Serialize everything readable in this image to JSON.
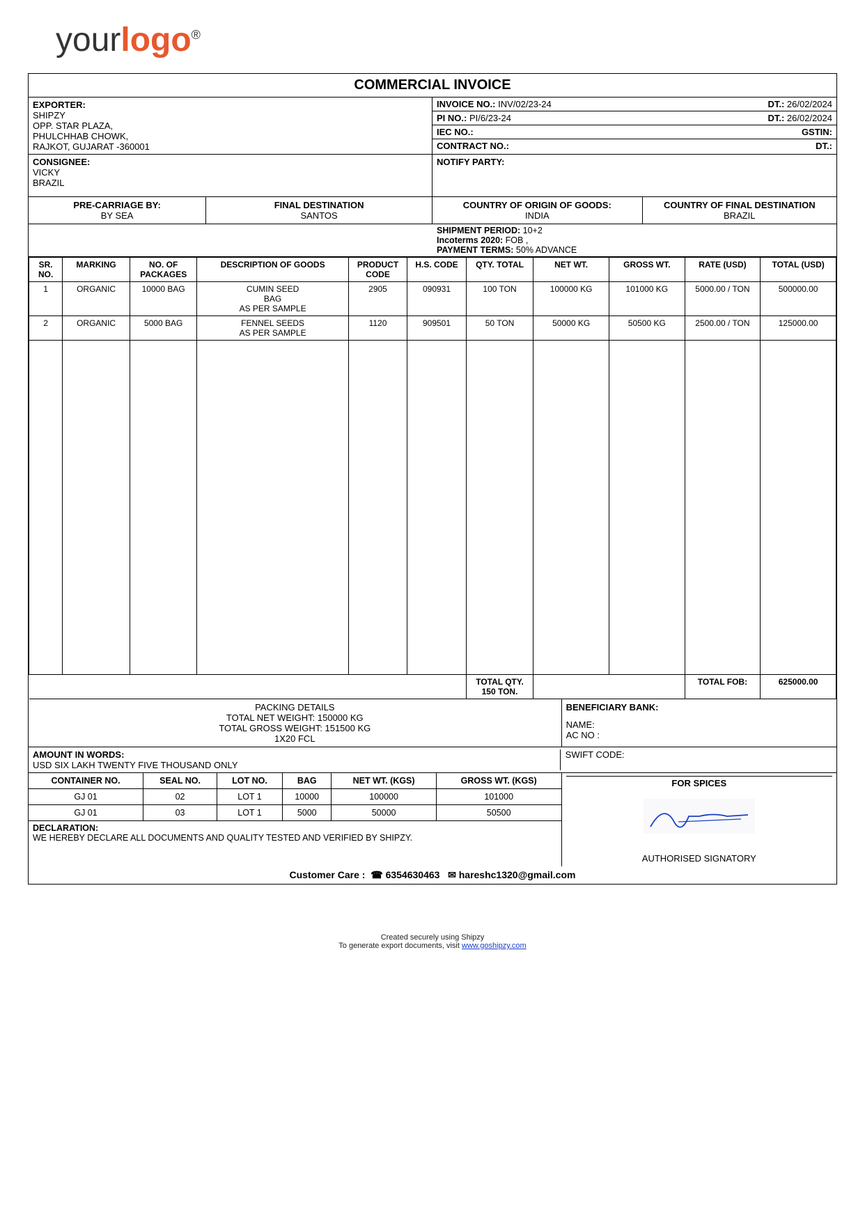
{
  "logo": {
    "part1": "your",
    "part2": "logo",
    "reg": "®"
  },
  "title": "COMMERCIAL INVOICE",
  "exporter": {
    "label": "EXPORTER:",
    "name": "SHIPZY",
    "addr1": "OPP. STAR PLAZA,",
    "addr2": "PHULCHHAB CHOWK,",
    "addr3": "RAJKOT, GUJARAT -360001"
  },
  "invoice": {
    "no_label": "INVOICE NO.:",
    "no": "INV/02/23-24",
    "dt_label": "DT.:",
    "dt": "26/02/2024",
    "pi_label": "PI NO.:",
    "pi": "PI/6/23-24",
    "pi_dt": "26/02/2024",
    "iec_label": "IEC NO.:",
    "gstin_label": "GSTIN:",
    "contract_label": "CONTRACT NO.:",
    "contract_dt_label": "DT.:"
  },
  "consignee": {
    "label": "CONSIGNEE:",
    "name": "VICKY",
    "country": "BRAZIL"
  },
  "notify": {
    "label": "NOTIFY PARTY:"
  },
  "shipcols": {
    "pre_label": "PRE-CARRIAGE BY:",
    "pre_val": "BY SEA",
    "dest_label": "FINAL DESTINATION",
    "dest_val": "SANTOS",
    "origin_label": "COUNTRY OF ORIGIN OF GOODS:",
    "origin_val": "INDIA",
    "final_label": "COUNTRY OF FINAL DESTINATION",
    "final_val": "BRAZIL"
  },
  "shipdetails": {
    "period_label": "SHIPMENT PERIOD:",
    "period": "10+2",
    "inco_label": "Incoterms 2020:",
    "inco": "FOB ,",
    "pay_label": "PAYMENT TERMS:",
    "pay": "50% ADVANCE"
  },
  "goods": {
    "headers": {
      "sr": "SR. NO.",
      "marking": "MARKING",
      "packages": "NO. OF PACKAGES",
      "desc": "DESCRIPTION OF GOODS",
      "product": "PRODUCT CODE",
      "hs": "H.S. CODE",
      "qty": "QTY. TOTAL",
      "net": "NET WT.",
      "gross": "GROSS WT.",
      "rate": "RATE (USD)",
      "total": "TOTAL (USD)"
    },
    "rows": [
      {
        "sr": "1",
        "marking": "ORGANIC",
        "packages": "10000 BAG",
        "desc": "CUMIN SEED\nBAG\nAS PER SAMPLE",
        "product": "2905",
        "hs": "090931",
        "qty": "100 TON",
        "net": "100000 KG",
        "gross": "101000 KG",
        "rate": "5000.00 / TON",
        "total": "500000.00"
      },
      {
        "sr": "2",
        "marking": "ORGANIC",
        "packages": "5000 BAG",
        "desc": "FENNEL SEEDS\nAS PER SAMPLE",
        "product": "1120",
        "hs": "909501",
        "qty": "50 TON",
        "net": "50000 KG",
        "gross": "50500 KG",
        "rate": "2500.00 / TON",
        "total": "125000.00"
      }
    ],
    "total_qty_label": "TOTAL QTY.",
    "total_qty": "150 TON.",
    "total_fob_label": "TOTAL FOB:",
    "total_fob": "625000.00"
  },
  "packing": {
    "title": "PACKING DETAILS",
    "net": "TOTAL NET WEIGHT: 150000 KG",
    "gross": "TOTAL GROSS WEIGHT: 151500 KG",
    "fcl": "1X20 FCL"
  },
  "bank": {
    "title": "BENEFICIARY BANK:",
    "name_label": "NAME:",
    "ac_label": "AC NO :",
    "swift_label": "SWIFT CODE:"
  },
  "amount_words": {
    "label": "AMOUNT IN WORDS:",
    "value": "USD SIX LAKH TWENTY FIVE THOUSAND ONLY"
  },
  "for_spices": "FOR SPICES",
  "containers": {
    "headers": {
      "cont": "CONTAINER NO.",
      "seal": "SEAL NO.",
      "lot": "LOT NO.",
      "bag": "BAG",
      "net": "NET WT. (KGS)",
      "gross": "GROSS WT. (KGS)"
    },
    "rows": [
      {
        "cont": "GJ 01",
        "seal": "02",
        "lot": "LOT 1",
        "bag": "10000",
        "net": "100000",
        "gross": "101000"
      },
      {
        "cont": "GJ 01",
        "seal": "03",
        "lot": "LOT 1",
        "bag": "5000",
        "net": "50000",
        "gross": "50500"
      }
    ]
  },
  "signatory": "AUTHORISED SIGNATORY",
  "declaration": {
    "label": "DECLARATION:",
    "text": "WE HEREBY DECLARE ALL DOCUMENTS AND QUALITY TESTED AND VERIFIED BY SHIPZY."
  },
  "care": {
    "label": "Customer Care :",
    "phone": "6354630463",
    "email": "hareshc1320@gmail.com"
  },
  "footer": {
    "line1": "Created securely using Shipzy",
    "line2": "To generate export documents, visit ",
    "link": "www.goshipzy.com"
  }
}
